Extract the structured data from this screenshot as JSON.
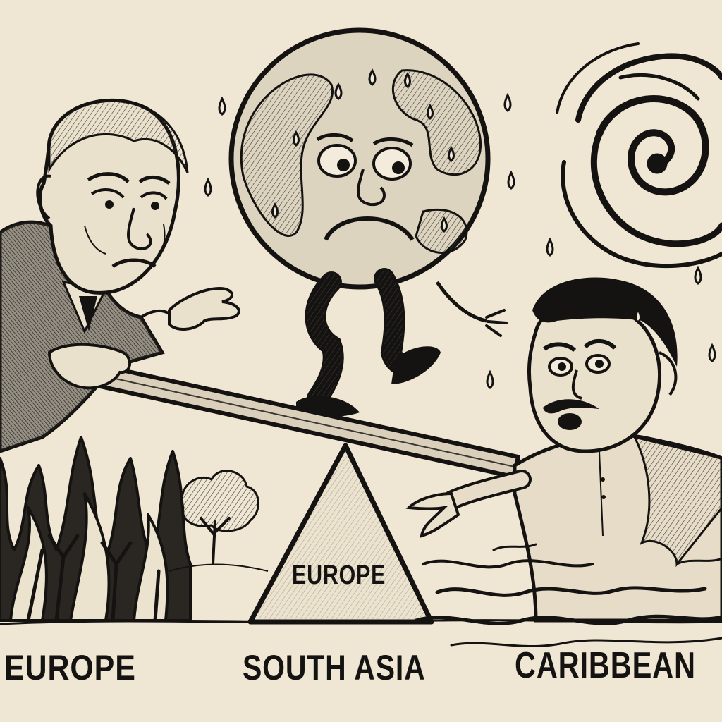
{
  "labels": {
    "left_region": "EUROPE",
    "center_region": "SOUTH ASIA",
    "right_region": "CARIBBEAN",
    "fulcrum": "EUROPE"
  },
  "figures": [
    "globe-character",
    "older-man-character",
    "younger-man-character",
    "wildfire",
    "tree",
    "hurricane",
    "floodwater",
    "seesaw"
  ],
  "palette": {
    "paper": "#efe6d3",
    "ink": "#151311",
    "shade": "#6e675c"
  }
}
